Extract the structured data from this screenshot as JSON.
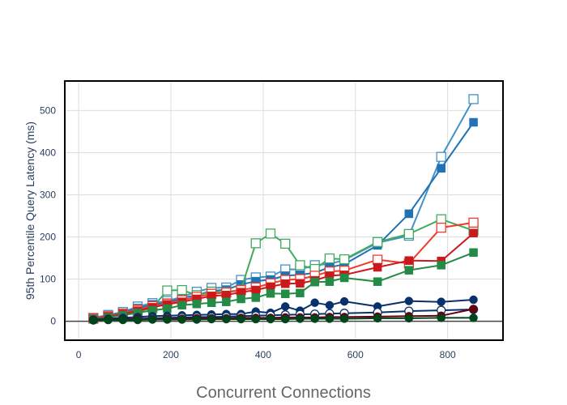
{
  "chart_data": {
    "type": "line",
    "title": "",
    "xlabel": "Concurrent Connections",
    "ylabel": "95th Percentile Query Latency (ms)",
    "xlim": [
      -30,
      920
    ],
    "ylim": [
      -45,
      570
    ],
    "xticks": [
      0,
      200,
      400,
      600,
      800
    ],
    "yticks": [
      0,
      100,
      200,
      300,
      400,
      500
    ],
    "grid": true,
    "legend": "none",
    "series": [
      {
        "color": "#4292c6",
        "marker": "square-open",
        "size": 11,
        "x": [
          32,
          64,
          96,
          128,
          160,
          192,
          224,
          256,
          288,
          320,
          352,
          384,
          416,
          448,
          480,
          512,
          544,
          576,
          648,
          716,
          786,
          856
        ],
        "y": [
          8,
          15,
          22,
          35,
          43,
          48,
          58,
          70,
          79,
          80,
          98,
          104,
          106,
          123,
          123,
          133,
          136,
          145,
          186,
          203,
          390,
          527
        ]
      },
      {
        "color": "#2171b5",
        "marker": "square",
        "size": 10,
        "x": [
          32,
          64,
          96,
          128,
          160,
          192,
          224,
          256,
          288,
          320,
          352,
          384,
          416,
          448,
          480,
          512,
          544,
          576,
          648,
          716,
          786,
          856
        ],
        "y": [
          7,
          13,
          20,
          31,
          40,
          44,
          55,
          62,
          72,
          75,
          87,
          95,
          99,
          108,
          110,
          115,
          128,
          135,
          180,
          255,
          363,
          472
        ]
      },
      {
        "color": "#41ab5d",
        "marker": "square-open",
        "size": 11,
        "x": [
          32,
          64,
          96,
          128,
          160,
          192,
          224,
          256,
          288,
          320,
          352,
          384,
          416,
          448,
          480,
          512,
          544,
          576,
          648,
          716,
          786,
          856
        ],
        "y": [
          6,
          10,
          16,
          22,
          32,
          73,
          74,
          62,
          70,
          69,
          75,
          185,
          208,
          184,
          133,
          124,
          149,
          147,
          188,
          207,
          242,
          215
        ]
      },
      {
        "color": "#ef3b2c",
        "marker": "square-open",
        "size": 11,
        "x": [
          32,
          64,
          96,
          128,
          160,
          192,
          224,
          256,
          288,
          320,
          352,
          384,
          416,
          448,
          480,
          512,
          544,
          576,
          648,
          716,
          786,
          856
        ],
        "y": [
          7,
          12,
          18,
          27,
          36,
          42,
          50,
          58,
          65,
          68,
          74,
          80,
          90,
          98,
          100,
          108,
          118,
          120,
          146,
          137,
          222,
          234
        ]
      },
      {
        "color": "#cb181d",
        "marker": "square",
        "size": 10,
        "x": [
          32,
          64,
          96,
          128,
          160,
          192,
          224,
          256,
          288,
          320,
          352,
          384,
          416,
          448,
          480,
          512,
          544,
          576,
          648,
          716,
          786,
          856
        ],
        "y": [
          6,
          11,
          17,
          25,
          33,
          40,
          46,
          53,
          60,
          62,
          69,
          74,
          82,
          89,
          90,
          97,
          108,
          110,
          128,
          144,
          143,
          209
        ]
      },
      {
        "color": "#238b45",
        "marker": "square",
        "size": 10,
        "x": [
          32,
          64,
          96,
          128,
          160,
          192,
          224,
          256,
          288,
          320,
          352,
          384,
          416,
          448,
          480,
          512,
          544,
          576,
          648,
          716,
          786,
          856
        ],
        "y": [
          5,
          9,
          14,
          20,
          26,
          30,
          38,
          41,
          44,
          46,
          53,
          56,
          66,
          65,
          67,
          93,
          94,
          103,
          94,
          121,
          133,
          163
        ]
      },
      {
        "color": "#08306b",
        "marker": "circle",
        "size": 10,
        "x": [
          32,
          64,
          96,
          128,
          160,
          192,
          224,
          256,
          288,
          320,
          352,
          384,
          416,
          448,
          480,
          512,
          544,
          576,
          648,
          716,
          786,
          856
        ],
        "y": [
          4,
          6,
          8,
          10,
          12,
          13,
          14,
          15,
          16,
          17,
          17,
          23,
          20,
          35,
          25,
          44,
          38,
          47,
          35,
          48,
          46,
          51
        ]
      },
      {
        "color": "#08306b",
        "marker": "circle-open",
        "size": 10,
        "x": [
          32,
          64,
          96,
          128,
          160,
          192,
          224,
          256,
          288,
          320,
          352,
          384,
          416,
          448,
          480,
          512,
          544,
          576,
          648,
          716,
          786,
          856
        ],
        "y": [
          3,
          4,
          5,
          6,
          7,
          8,
          9,
          10,
          10,
          11,
          12,
          13,
          14,
          15,
          16,
          17,
          18,
          19,
          21,
          24,
          26,
          28
        ]
      },
      {
        "color": "#67000d",
        "marker": "circle",
        "size": 10,
        "x": [
          32,
          64,
          96,
          128,
          160,
          192,
          224,
          256,
          288,
          320,
          352,
          384,
          416,
          448,
          480,
          512,
          544,
          576,
          648,
          716,
          786,
          856
        ],
        "y": [
          3,
          4,
          4,
          5,
          5,
          6,
          6,
          7,
          7,
          7,
          8,
          8,
          8,
          9,
          9,
          9,
          10,
          10,
          11,
          12,
          13,
          29
        ]
      },
      {
        "color": "#00441b",
        "marker": "circle",
        "size": 10,
        "x": [
          32,
          64,
          96,
          128,
          160,
          192,
          224,
          256,
          288,
          320,
          352,
          384,
          416,
          448,
          480,
          512,
          544,
          576,
          648,
          716,
          786,
          856
        ],
        "y": [
          2,
          3,
          3,
          3,
          4,
          4,
          4,
          4,
          5,
          5,
          5,
          5,
          5,
          5,
          6,
          6,
          6,
          6,
          7,
          7,
          8,
          8
        ]
      }
    ]
  }
}
